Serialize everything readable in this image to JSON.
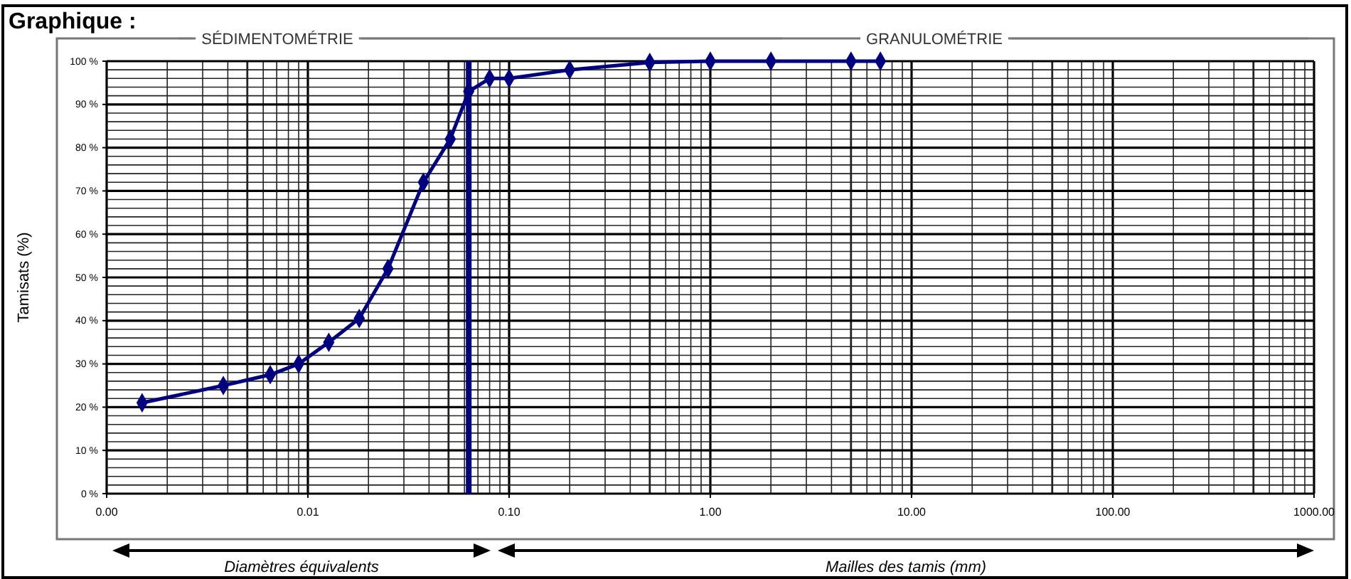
{
  "chart_data": {
    "type": "line",
    "title": "Graphique :",
    "ylabel": "Tamisats (%)",
    "annotations": [
      "SÉDIMENTOMÉTRIE",
      "GRANULOMÉTRIE",
      "Diamètres équivalents",
      "Mailles des tamis (mm)"
    ],
    "log": "x",
    "grid": true,
    "marker": "diamond",
    "line_style": "solid",
    "xlim": [
      0.001,
      1000
    ],
    "xticks": [
      {
        "value": 0.001,
        "label": "0.00"
      },
      {
        "value": 0.01,
        "label": "0.01"
      },
      {
        "value": 0.1,
        "label": "0.10"
      },
      {
        "value": 1,
        "label": "1.00"
      },
      {
        "value": 10,
        "label": "10.00"
      },
      {
        "value": 100,
        "label": "100.00"
      },
      {
        "value": 1000,
        "label": "1000.00"
      }
    ],
    "ylim": [
      0,
      100
    ],
    "yticks": [
      {
        "value": 0,
        "label": "0 %"
      },
      {
        "value": 10,
        "label": "10 %"
      },
      {
        "value": 20,
        "label": "20 %"
      },
      {
        "value": 30,
        "label": "30 %"
      },
      {
        "value": 40,
        "label": "40 %"
      },
      {
        "value": 50,
        "label": "50 %"
      },
      {
        "value": 60,
        "label": "60 %"
      },
      {
        "value": 70,
        "label": "70 %"
      },
      {
        "value": 80,
        "label": "80 %"
      },
      {
        "value": 90,
        "label": "90 %"
      },
      {
        "value": 100,
        "label": "100 %"
      }
    ],
    "ref_lines": [
      {
        "axis": "x",
        "value": 0.063,
        "color": "#000080"
      }
    ],
    "series": [
      {
        "color": "#000080",
        "x": [
          0.0015,
          0.0038,
          0.0065,
          0.009,
          0.0127,
          0.018,
          0.025,
          0.0375,
          0.051,
          0.063,
          0.08,
          0.1,
          0.2,
          0.5,
          1,
          2,
          5,
          7
        ],
        "values": [
          21,
          25,
          27.5,
          30,
          35,
          40.5,
          52,
          72,
          82,
          93,
          96,
          96,
          98,
          99.7,
          100,
          100,
          100,
          100
        ]
      }
    ]
  }
}
